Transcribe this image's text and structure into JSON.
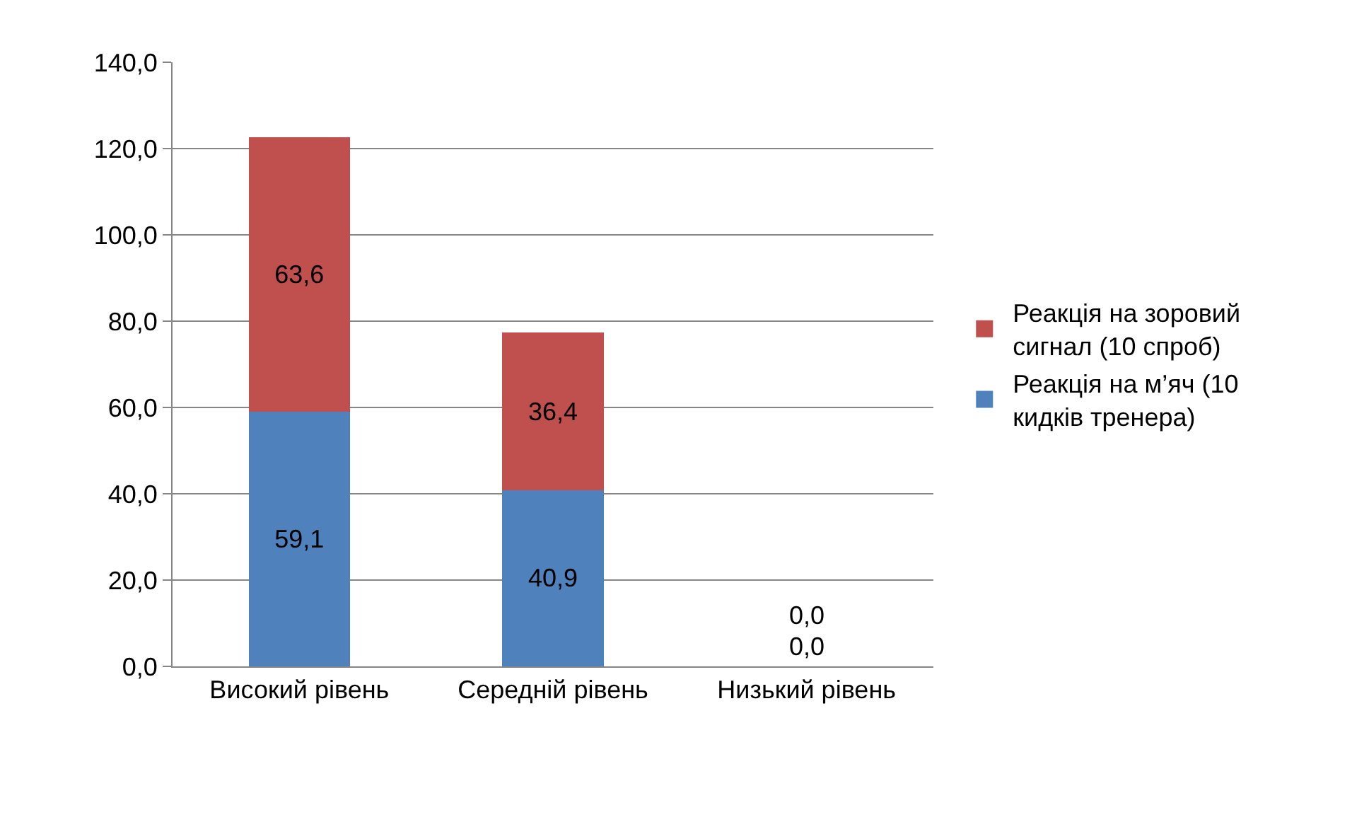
{
  "chart_data": {
    "type": "bar",
    "stacked": true,
    "categories": [
      "Високий рівень",
      "Середній рівень",
      "Низький рівень"
    ],
    "series": [
      {
        "name": "Реакція на м’яч (10 кидків тренера)",
        "color": "#4f81bd",
        "values": [
          59.1,
          40.9,
          0.0
        ],
        "value_labels": [
          "59,1",
          "40,9",
          "0,0"
        ]
      },
      {
        "name": "Реакція на зоровий сигнал (10 спроб)",
        "color": "#c0504d",
        "values": [
          63.6,
          36.4,
          0.0
        ],
        "value_labels": [
          "63,6",
          "36,4",
          "0,0"
        ]
      }
    ],
    "ylim": [
      0,
      140
    ],
    "yticks": [
      {
        "value": 0,
        "label": "0,0"
      },
      {
        "value": 20,
        "label": "20,0"
      },
      {
        "value": 40,
        "label": "40,0"
      },
      {
        "value": 60,
        "label": "60,0"
      },
      {
        "value": 80,
        "label": "80,0"
      },
      {
        "value": 100,
        "label": "100,0"
      },
      {
        "value": 120,
        "label": "120,0"
      },
      {
        "value": 140,
        "label": "140,0"
      }
    ],
    "grid": "y",
    "legend": "right"
  }
}
